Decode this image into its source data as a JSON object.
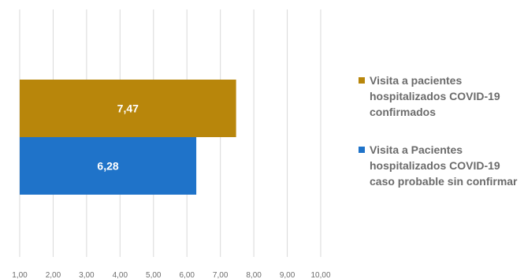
{
  "chart_data": {
    "type": "bar",
    "orientation": "horizontal",
    "title": "",
    "xlabel": "",
    "ylabel": "",
    "xlim": [
      1,
      10
    ],
    "x_ticks": [
      "1,00",
      "2,00",
      "3,00",
      "4,00",
      "5,00",
      "6,00",
      "7,00",
      "8,00",
      "9,00",
      "10,00"
    ],
    "grid": "vertical",
    "legend_position": "right",
    "series": [
      {
        "name": "Visita a pacientes hospitalizados COVID-19 confirmados",
        "value": 7.47,
        "label": "7,47",
        "color": "#b8860b"
      },
      {
        "name": "Visita a Pacientes hospitalizados COVID-19 caso probable sin confirmar",
        "value": 6.28,
        "label": "6,28",
        "color": "#1f73c9"
      }
    ]
  }
}
